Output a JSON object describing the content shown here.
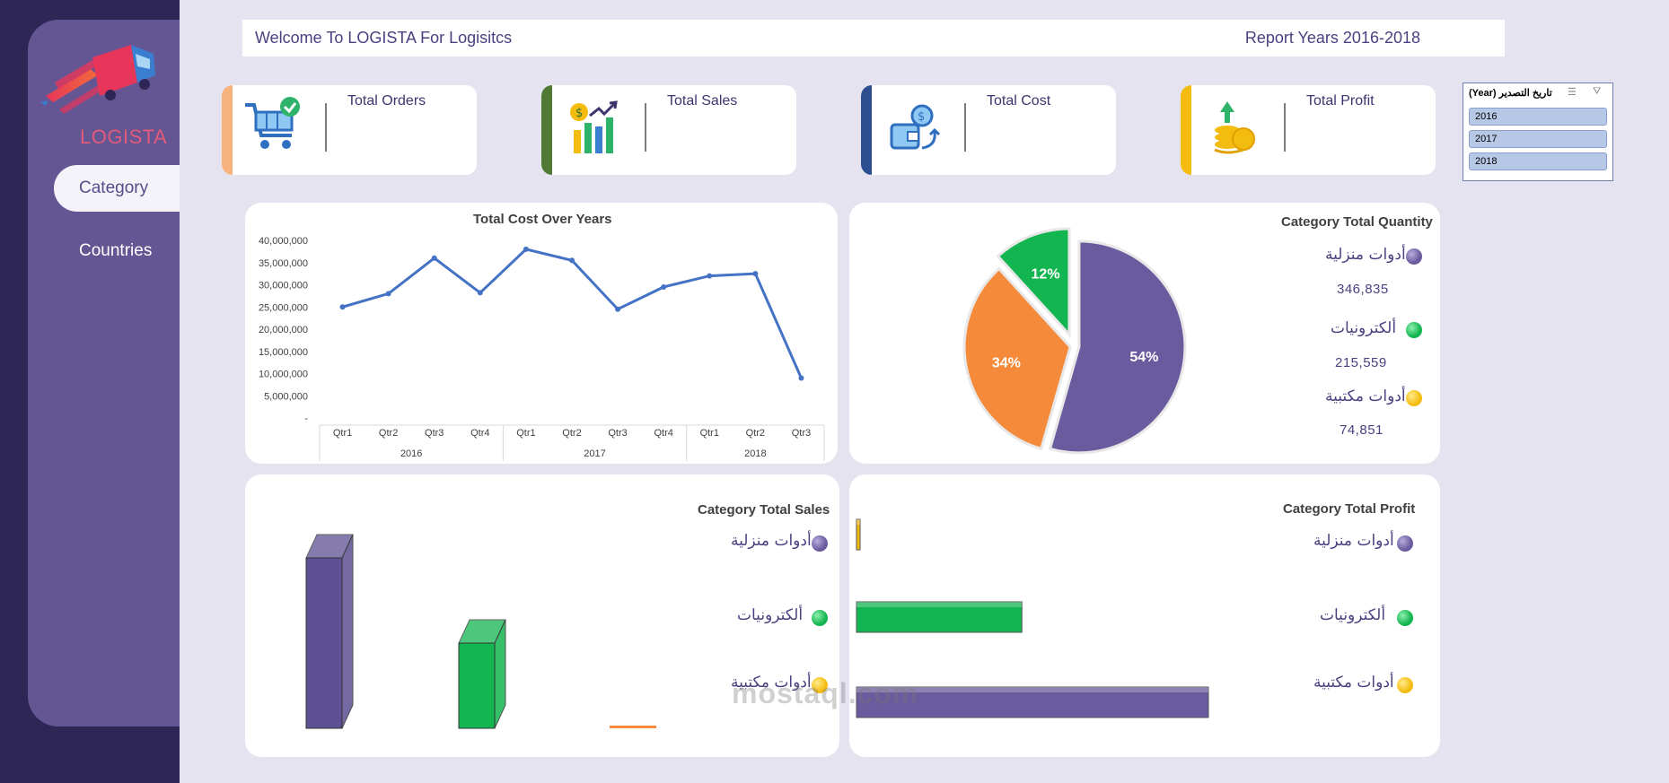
{
  "sidebar": {
    "logo_text": "LOGISTA",
    "items": [
      {
        "label": "Category",
        "active": true
      },
      {
        "label": "Countries",
        "active": false
      }
    ]
  },
  "header": {
    "welcome": "Welcome To LOGISTA For Logisitcs",
    "report_years": "Report Years 2016-2018"
  },
  "kpis": [
    {
      "label": "Total Orders",
      "accent": "#f6b37d",
      "icon": "cart-check-icon"
    },
    {
      "label": "Total Sales",
      "accent": "#4e7a34",
      "icon": "sales-growth-icon"
    },
    {
      "label": "Total Cost",
      "accent": "#2e4f8f",
      "icon": "wallet-coin-icon"
    },
    {
      "label": "Total Profit",
      "accent": "#f5bc10",
      "icon": "coins-hand-icon"
    }
  ],
  "slicer": {
    "title": "(Year) تاريخ التصدير",
    "items": [
      "2016",
      "2017",
      "2018"
    ]
  },
  "line_chart": {
    "chart_data": {
      "type": "line",
      "title": "Total Cost Over Years",
      "y_ticks": [
        "40,000,000",
        "35,000,000",
        "30,000,000",
        "25,000,000",
        "20,000,000",
        "15,000,000",
        "10,000,000",
        "5,000,000",
        "-"
      ],
      "ylim": [
        0,
        40000000
      ],
      "quarters": [
        "Qtr1",
        "Qtr2",
        "Qtr3",
        "Qtr4",
        "Qtr1",
        "Qtr2",
        "Qtr3",
        "Qtr4",
        "Qtr1",
        "Qtr2",
        "Qtr3"
      ],
      "years": [
        "2016",
        "2017",
        "2018"
      ],
      "values": [
        25000000,
        28000000,
        36000000,
        28200000,
        38000000,
        35500000,
        24500000,
        29500000,
        32000000,
        32500000,
        9000000
      ],
      "color": "#4472c4"
    }
  },
  "pie_chart": {
    "chart_data": {
      "type": "pie",
      "title": "Category Total Quantity",
      "slices": [
        {
          "label": "أدوات منزلية",
          "value": 346835,
          "display": "346,835",
          "percent": "54%",
          "color": "#6a5a9e"
        },
        {
          "label": "ألكترونيات",
          "value": 215559,
          "display": "215,559",
          "percent": "34%",
          "color": "#f58b3a"
        },
        {
          "label": "أدوات مكتبية",
          "value": 74851,
          "display": "74,851",
          "percent": "12%",
          "color": "#12b54f"
        }
      ]
    },
    "legend_colors": [
      "#6a5a9e",
      "#12b54f",
      "#f5bc10"
    ]
  },
  "sales_chart": {
    "chart_data": {
      "type": "bar",
      "title": "Category Total Sales",
      "categories": [
        "أدوات منزلية",
        "ألكترونيات",
        "أدوات مكتبية"
      ],
      "values": [
        100,
        50,
        1
      ],
      "colors": [
        "#5e5092",
        "#12b54f",
        "#f58b3a"
      ]
    },
    "legend_colors": [
      "#6a5a9e",
      "#12b54f",
      "#f5bc10"
    ]
  },
  "profit_chart": {
    "chart_data": {
      "type": "bar",
      "title": "Category Total Profit",
      "categories": [
        "أدوات منزلية",
        "ألكترونيات",
        "أدوات مكتبية"
      ],
      "values": [
        1,
        47,
        100
      ],
      "colors": [
        "#f5bc10",
        "#12b54f",
        "#6a5a9e"
      ]
    },
    "legend_colors": [
      "#6a5a9e",
      "#12b54f",
      "#f5bc10"
    ]
  },
  "watermark": "mostaql.com"
}
